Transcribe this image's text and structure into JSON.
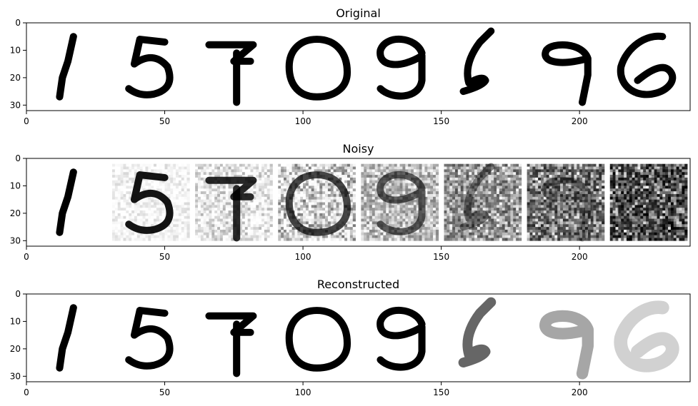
{
  "chart_data": [
    {
      "type": "image",
      "title": "Original",
      "xlabel": "",
      "ylabel": "",
      "xlim": [
        0,
        240
      ],
      "ylim": [
        32,
        0
      ],
      "xticks": [
        0,
        50,
        100,
        150,
        200
      ],
      "yticks": [
        0,
        10,
        20,
        30
      ],
      "digits": [
        "1",
        "5",
        "7",
        "0",
        "9",
        "6",
        "9",
        "6"
      ],
      "noise_levels": [
        0,
        0,
        0,
        0,
        0,
        0,
        0,
        0
      ],
      "blur_levels": [
        0,
        0,
        0,
        0,
        0,
        0,
        0,
        0
      ]
    },
    {
      "type": "image",
      "title": "Noisy",
      "xlabel": "",
      "ylabel": "",
      "xlim": [
        0,
        240
      ],
      "ylim": [
        32,
        0
      ],
      "xticks": [
        0,
        50,
        100,
        150,
        200
      ],
      "yticks": [
        0,
        10,
        20,
        30
      ],
      "digits": [
        "1",
        "5",
        "7",
        "0",
        "9",
        "6",
        "9",
        "6"
      ],
      "noise_levels": [
        0,
        0.1,
        0.2,
        0.35,
        0.5,
        0.7,
        0.85,
        1.0
      ],
      "blur_levels": [
        0,
        0,
        0,
        0,
        0,
        0,
        0,
        0
      ]
    },
    {
      "type": "image",
      "title": "Reconstructed",
      "xlabel": "",
      "ylabel": "",
      "xlim": [
        0,
        240
      ],
      "ylim": [
        32,
        0
      ],
      "xticks": [
        0,
        50,
        100,
        150,
        200
      ],
      "yticks": [
        0,
        10,
        20,
        30
      ],
      "digits": [
        "1",
        "5",
        "7",
        "0",
        "9",
        "6",
        "9",
        "6"
      ],
      "noise_levels": [
        0,
        0,
        0,
        0,
        0,
        0,
        0,
        0
      ],
      "blur_levels": [
        0,
        0,
        0,
        0,
        0,
        0.4,
        0.65,
        0.9
      ]
    }
  ]
}
